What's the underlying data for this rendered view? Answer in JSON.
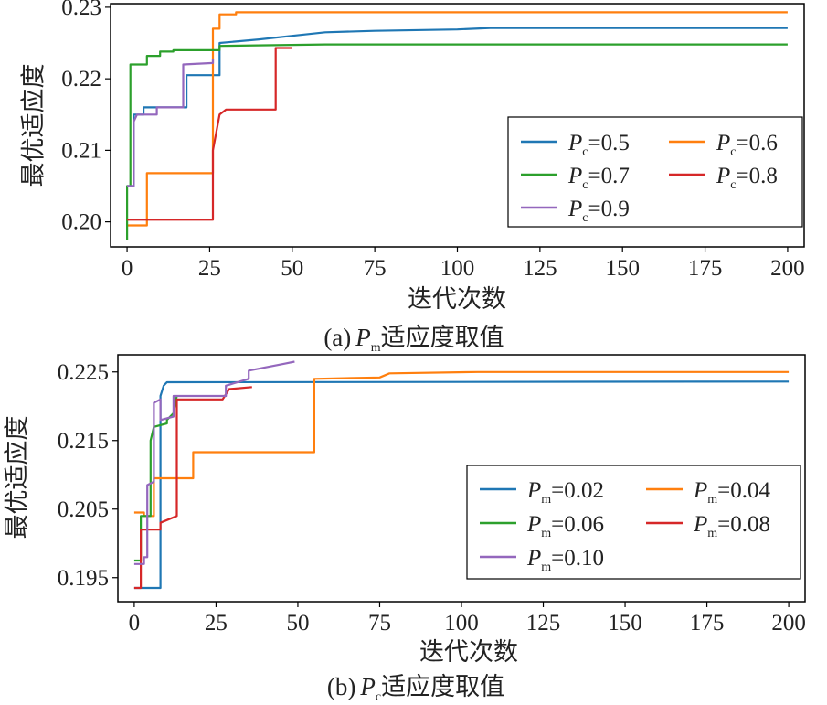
{
  "chart_data": [
    {
      "type": "line",
      "caption_prefix": "(a)",
      "caption_sym": "P",
      "caption_sub": "m",
      "caption_suffix": "适应度取值",
      "xlabel": "迭代次数",
      "ylabel": "最优适应度",
      "xlim": [
        -5,
        205
      ],
      "ylim": [
        0.1965,
        0.2305
      ],
      "xticks": [
        0,
        25,
        50,
        75,
        100,
        125,
        150,
        175,
        200
      ],
      "yticks": [
        0.2,
        0.21,
        0.22,
        0.23
      ],
      "ytick_labels": [
        "0.20",
        "0.21",
        "0.22",
        "0.23"
      ],
      "legend": {
        "position": "center-right",
        "columns": 2,
        "sym": "P",
        "sub": "c"
      },
      "series": [
        {
          "name": "=0.5",
          "color": "#1f77b4",
          "order": 0,
          "points": [
            [
              0,
              0.205
            ],
            [
              2,
              0.205
            ],
            [
              2,
              0.215
            ],
            [
              5,
              0.215
            ],
            [
              5,
              0.216
            ],
            [
              18,
              0.216
            ],
            [
              18,
              0.2205
            ],
            [
              28,
              0.2205
            ],
            [
              28,
              0.225
            ],
            [
              40,
              0.2255
            ],
            [
              50,
              0.226
            ],
            [
              60,
              0.2265
            ],
            [
              75,
              0.2267
            ],
            [
              100,
              0.2269
            ],
            [
              110,
              0.2271
            ],
            [
              200,
              0.2271
            ]
          ]
        },
        {
          "name": "=0.6",
          "color": "#ff7f0e",
          "order": 1,
          "points": [
            [
              0,
              0.1995
            ],
            [
              6,
              0.1995
            ],
            [
              6,
              0.2068
            ],
            [
              26,
              0.2068
            ],
            [
              26,
              0.227
            ],
            [
              28,
              0.227
            ],
            [
              28,
              0.229
            ],
            [
              33,
              0.229
            ],
            [
              33,
              0.2293
            ],
            [
              200,
              0.2293
            ]
          ]
        },
        {
          "name": "=0.7",
          "color": "#2ca02c",
          "order": 2,
          "points": [
            [
              0,
              0.1975
            ],
            [
              0,
              0.205
            ],
            [
              1,
              0.205
            ],
            [
              1,
              0.222
            ],
            [
              6,
              0.222
            ],
            [
              6,
              0.2232
            ],
            [
              10,
              0.2232
            ],
            [
              10,
              0.2238
            ],
            [
              14,
              0.2238
            ],
            [
              14,
              0.224
            ],
            [
              28,
              0.224
            ],
            [
              28,
              0.2246
            ],
            [
              60,
              0.2248
            ],
            [
              200,
              0.2248
            ]
          ]
        },
        {
          "name": "=0.8",
          "color": "#d62728",
          "order": 3,
          "points": [
            [
              0,
              0.2003
            ],
            [
              26,
              0.2003
            ],
            [
              26,
              0.21
            ],
            [
              28,
              0.215
            ],
            [
              30,
              0.2157
            ],
            [
              45,
              0.2157
            ],
            [
              45,
              0.2243
            ],
            [
              50,
              0.2243
            ]
          ]
        },
        {
          "name": "=0.9",
          "color": "#9467bd",
          "order": 4,
          "points": [
            [
              0,
              0.205
            ],
            [
              2,
              0.205
            ],
            [
              2,
              0.214
            ],
            [
              3,
              0.215
            ],
            [
              9,
              0.215
            ],
            [
              9,
              0.216
            ],
            [
              17,
              0.216
            ],
            [
              17,
              0.222
            ],
            [
              26,
              0.2222
            ],
            [
              26,
              0.2228
            ]
          ]
        }
      ]
    },
    {
      "type": "line",
      "caption_prefix": "(b)",
      "caption_sym": "P",
      "caption_sub": "c",
      "caption_suffix": "适应度取值",
      "xlabel": "迭代次数",
      "ylabel": "最优适应度",
      "xlim": [
        -5,
        205
      ],
      "ylim": [
        0.1915,
        0.2275
      ],
      "xticks": [
        0,
        25,
        50,
        75,
        100,
        125,
        150,
        175,
        200
      ],
      "yticks": [
        0.195,
        0.205,
        0.215,
        0.225
      ],
      "ytick_labels": [
        "0.195",
        "0.205",
        "0.215",
        "0.225"
      ],
      "legend": {
        "position": "lower-right",
        "columns": 2,
        "sym": "P",
        "sub": "m"
      },
      "series": [
        {
          "name": "=0.02",
          "color": "#1f77b4",
          "order": 0,
          "points": [
            [
              0,
              0.1935
            ],
            [
              8,
              0.1935
            ],
            [
              8,
              0.2215
            ],
            [
              9,
              0.223
            ],
            [
              10,
              0.2235
            ],
            [
              200,
              0.2236
            ]
          ]
        },
        {
          "name": "=0.04",
          "color": "#ff7f0e",
          "order": 1,
          "points": [
            [
              0,
              0.2045
            ],
            [
              3,
              0.2045
            ],
            [
              3,
              0.204
            ],
            [
              6,
              0.204
            ],
            [
              6,
              0.2095
            ],
            [
              18,
              0.2095
            ],
            [
              18,
              0.2133
            ],
            [
              55,
              0.2133
            ],
            [
              55,
              0.224
            ],
            [
              75,
              0.2242
            ],
            [
              78,
              0.2248
            ],
            [
              105,
              0.225
            ],
            [
              200,
              0.225
            ]
          ]
        },
        {
          "name": "=0.06",
          "color": "#2ca02c",
          "order": 2,
          "points": [
            [
              0,
              0.1975
            ],
            [
              2,
              0.1975
            ],
            [
              2,
              0.204
            ],
            [
              5,
              0.204
            ],
            [
              5,
              0.215
            ],
            [
              6,
              0.217
            ],
            [
              10,
              0.2175
            ],
            [
              10,
              0.218
            ],
            [
              12,
              0.219
            ],
            [
              13,
              0.2215
            ]
          ]
        },
        {
          "name": "=0.08",
          "color": "#d62728",
          "order": 3,
          "points": [
            [
              0,
              0.1935
            ],
            [
              2,
              0.1935
            ],
            [
              2,
              0.202
            ],
            [
              8,
              0.202
            ],
            [
              8,
              0.203
            ],
            [
              13,
              0.204
            ],
            [
              13,
              0.221
            ],
            [
              27,
              0.221
            ],
            [
              29,
              0.2225
            ],
            [
              36,
              0.2228
            ]
          ]
        },
        {
          "name": "=0.10",
          "color": "#9467bd",
          "order": 4,
          "points": [
            [
              0,
              0.197
            ],
            [
              3,
              0.197
            ],
            [
              3,
              0.198
            ],
            [
              4,
              0.198
            ],
            [
              4,
              0.2085
            ],
            [
              6,
              0.209
            ],
            [
              6,
              0.2205
            ],
            [
              8,
              0.221
            ],
            [
              8,
              0.218
            ],
            [
              12,
              0.2185
            ],
            [
              12,
              0.2215
            ],
            [
              28,
              0.2215
            ],
            [
              28,
              0.223
            ],
            [
              35,
              0.224
            ],
            [
              35,
              0.2252
            ],
            [
              46,
              0.2262
            ],
            [
              49,
              0.2265
            ]
          ]
        }
      ]
    }
  ]
}
